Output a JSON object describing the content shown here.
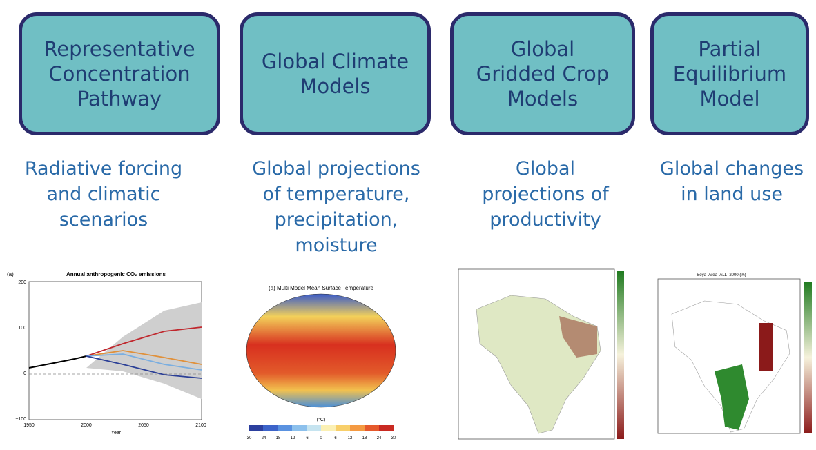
{
  "boxes": [
    {
      "label": [
        "Representative",
        "Concentration",
        "Pathway"
      ],
      "description": [
        "Radiative forcing",
        "and climatic",
        "scenarios"
      ]
    },
    {
      "label": [
        "Global Climate",
        "Models"
      ],
      "description": [
        "Global projections",
        "of temperature,",
        "precipitation,",
        "moisture"
      ]
    },
    {
      "label": [
        "Global",
        "Gridded Crop",
        "Models"
      ],
      "description": [
        "Global",
        "projections of",
        "productivity"
      ]
    },
    {
      "label": [
        "Partial",
        "Equilibrium",
        "Model"
      ],
      "description": [
        "Global changes",
        "in land use"
      ]
    }
  ],
  "thumbnails": {
    "emissions": {
      "panel": "(a)",
      "title": "Annual anthropogenic CO₂ emissions",
      "x_label": "Year",
      "x_ticks": [
        "1950",
        "2000",
        "2050",
        "2100"
      ],
      "y_ticks": [
        "200",
        "100",
        "0",
        "−100"
      ]
    },
    "temperature": {
      "title": "(a) Multi Model Mean Surface Temperature",
      "unit": "(°C)",
      "ticks": [
        -30,
        -24,
        -18,
        -12,
        -6,
        0,
        6,
        12,
        18,
        24,
        30
      ]
    },
    "soya": {
      "title": "Soya_Area_ALL_2000 (%)"
    }
  }
}
